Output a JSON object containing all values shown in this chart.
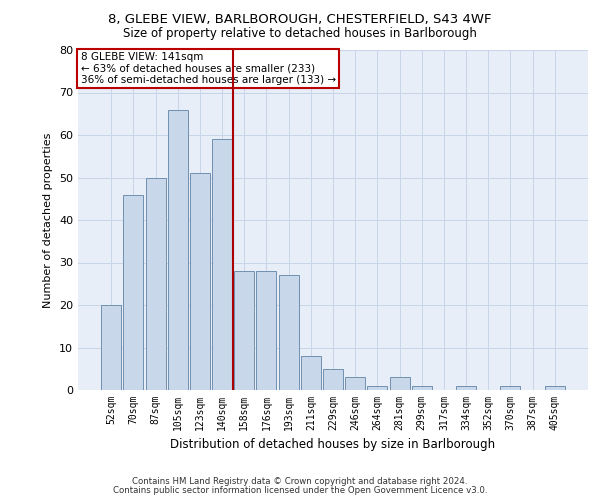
{
  "title_line1": "8, GLEBE VIEW, BARLBOROUGH, CHESTERFIELD, S43 4WF",
  "title_line2": "Size of property relative to detached houses in Barlborough",
  "xlabel": "Distribution of detached houses by size in Barlborough",
  "ylabel": "Number of detached properties",
  "categories": [
    "52sqm",
    "70sqm",
    "87sqm",
    "105sqm",
    "123sqm",
    "140sqm",
    "158sqm",
    "176sqm",
    "193sqm",
    "211sqm",
    "229sqm",
    "246sqm",
    "264sqm",
    "281sqm",
    "299sqm",
    "317sqm",
    "334sqm",
    "352sqm",
    "370sqm",
    "387sqm",
    "405sqm"
  ],
  "values": [
    20,
    46,
    50,
    66,
    51,
    59,
    28,
    28,
    27,
    8,
    5,
    3,
    1,
    3,
    1,
    0,
    1,
    0,
    1,
    0,
    1
  ],
  "bar_color": "#c8d8ea",
  "bar_edge_color": "#7090b0",
  "marker_color": "#aa0000",
  "red_line_index": 5,
  "ylim": [
    0,
    80
  ],
  "yticks": [
    0,
    10,
    20,
    30,
    40,
    50,
    60,
    70,
    80
  ],
  "annotation_line1": "8 GLEBE VIEW: 141sqm",
  "annotation_line2": "← 63% of detached houses are smaller (233)",
  "annotation_line3": "36% of semi-detached houses are larger (133) →",
  "annotation_box_color": "#bb0000",
  "grid_color": "#c8d4e8",
  "background_color": "#e8eef8",
  "footnote1": "Contains HM Land Registry data © Crown copyright and database right 2024.",
  "footnote2": "Contains public sector information licensed under the Open Government Licence v3.0."
}
